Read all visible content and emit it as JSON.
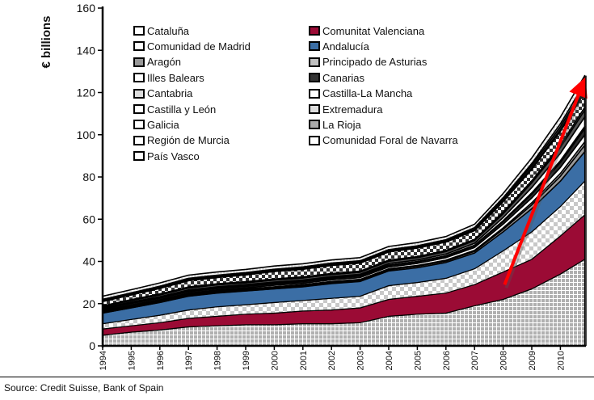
{
  "chart_data": {
    "type": "area",
    "stacked": true,
    "title": "",
    "xlabel": "",
    "ylabel": "€ billions",
    "ylim": [
      0,
      160
    ],
    "yticks": [
      "0",
      "20",
      "40",
      "60",
      "80",
      "100",
      "120",
      "140",
      "160"
    ],
    "xtick_labels": [
      "1994",
      "1995",
      "1996",
      "1997",
      "1998",
      "1999",
      "2000",
      "2001",
      "2002",
      "2003",
      "2004",
      "2005",
      "2006",
      "2007",
      "2008",
      "2009",
      "2010"
    ],
    "x": [
      1994,
      1995,
      1996,
      1997,
      1998,
      1999,
      2000,
      2001,
      2002,
      2003,
      2004,
      2005,
      2006,
      2007,
      2008,
      2009,
      2010,
      2010.85
    ],
    "series": [
      {
        "name": "Cataluña",
        "fill": "#b0b0b0",
        "pattern": "grid",
        "values": [
          5,
          6.5,
          7.5,
          9,
          9.5,
          10,
          10,
          10.5,
          10.5,
          11,
          14,
          15,
          15.5,
          19,
          22,
          27,
          34,
          41
        ]
      },
      {
        "name": "Comunitat Valenciana",
        "fill": "#9b0b35",
        "pattern": "solid",
        "values": [
          3,
          3,
          3.5,
          4,
          4.5,
          5,
          5.5,
          6,
          6.5,
          7,
          8,
          8.5,
          9.5,
          10,
          13,
          14,
          18,
          21
        ]
      },
      {
        "name": "Comunidad de Madrid",
        "fill": "#c8c8c8",
        "pattern": "checker",
        "values": [
          2.5,
          3,
          3.5,
          4,
          4.5,
          4.5,
          5,
          5,
          5.5,
          5.5,
          6.5,
          6.5,
          7,
          7.5,
          10,
          13,
          14,
          16
        ]
      },
      {
        "name": "Andalucía",
        "fill": "#3b6ea5",
        "pattern": "solid",
        "values": [
          5,
          5.5,
          6,
          6.5,
          6.5,
          6.5,
          6.5,
          6.5,
          7,
          7,
          7,
          7,
          7.5,
          7.5,
          9,
          11,
          12,
          14
        ]
      },
      {
        "name": "Aragón",
        "fill": "#999999",
        "pattern": "solid",
        "values": [
          0.5,
          0.5,
          0.5,
          0.5,
          0.5,
          0.5,
          0.6,
          0.6,
          0.6,
          0.6,
          0.6,
          0.7,
          0.7,
          0.8,
          1.2,
          1.8,
          2.4,
          3
        ]
      },
      {
        "name": "Principado de Asturias",
        "fill": "#d0d0d0",
        "pattern": "solid",
        "values": [
          0.4,
          0.4,
          0.4,
          0.4,
          0.4,
          0.4,
          0.4,
          0.4,
          0.4,
          0.4,
          0.4,
          0.4,
          0.4,
          0.5,
          0.7,
          1,
          1.3,
          1.6
        ]
      },
      {
        "name": "Illes Balears",
        "fill": "#ffffff",
        "pattern": "solid",
        "values": [
          0.4,
          0.5,
          0.5,
          0.6,
          0.6,
          0.6,
          0.7,
          0.7,
          0.8,
          0.9,
          0.9,
          1,
          1.2,
          1.3,
          1.8,
          2.3,
          2.8,
          3.3
        ]
      },
      {
        "name": "Canarias",
        "fill": "#2a2a2a",
        "pattern": "solid",
        "values": [
          0.6,
          0.7,
          0.7,
          0.7,
          0.7,
          0.7,
          0.7,
          0.7,
          0.7,
          0.7,
          0.7,
          0.7,
          0.7,
          0.8,
          1.2,
          1.8,
          2.4,
          3
        ]
      },
      {
        "name": "Cantabria",
        "fill": "#ffffff",
        "pattern": "solid",
        "values": [
          0.2,
          0.2,
          0.2,
          0.2,
          0.2,
          0.2,
          0.2,
          0.2,
          0.2,
          0.2,
          0.2,
          0.2,
          0.2,
          0.3,
          0.4,
          0.6,
          0.8,
          1
        ]
      },
      {
        "name": "Castilla-La Mancha",
        "fill": "#ffffff",
        "pattern": "solid",
        "values": [
          0.4,
          0.5,
          0.5,
          0.6,
          0.6,
          0.6,
          0.6,
          0.6,
          0.6,
          0.6,
          0.7,
          0.7,
          0.8,
          0.9,
          1.5,
          2.5,
          3.5,
          4.5
        ]
      },
      {
        "name": "Castilla y León",
        "fill": "#555555",
        "pattern": "solid",
        "values": [
          0.6,
          0.7,
          0.8,
          0.9,
          0.9,
          0.9,
          1,
          1,
          1,
          1,
          1.1,
          1.1,
          1.2,
          1.3,
          1.8,
          2.3,
          2.8,
          3.3
        ]
      },
      {
        "name": "Extremadura",
        "fill": "#e8e8e8",
        "pattern": "solid",
        "values": [
          0.4,
          0.4,
          0.5,
          0.5,
          0.5,
          0.5,
          0.5,
          0.5,
          0.5,
          0.5,
          0.5,
          0.5,
          0.5,
          0.5,
          0.7,
          0.9,
          1.1,
          1.3
        ]
      },
      {
        "name": "Galicia",
        "fill": "#444444",
        "pattern": "checker",
        "values": [
          2,
          2.2,
          2.6,
          3,
          3,
          3.2,
          3.5,
          3.6,
          3.8,
          3.8,
          3.9,
          4,
          4,
          4.2,
          5,
          5.5,
          6.5,
          7
        ]
      },
      {
        "name": "La Rioja",
        "fill": "#a0a0a0",
        "pattern": "solid",
        "values": [
          0.1,
          0.1,
          0.1,
          0.1,
          0.1,
          0.1,
          0.1,
          0.1,
          0.1,
          0.1,
          0.1,
          0.1,
          0.1,
          0.2,
          0.3,
          0.5,
          0.7,
          0.9
        ]
      },
      {
        "name": "Región de Murcia",
        "fill": "#333333",
        "pattern": "solid",
        "values": [
          0.4,
          0.4,
          0.4,
          0.4,
          0.4,
          0.4,
          0.4,
          0.4,
          0.4,
          0.4,
          0.4,
          0.4,
          0.4,
          0.5,
          0.8,
          1.2,
          1.6,
          2
        ]
      },
      {
        "name": "Comunidad Foral de Navarra",
        "fill": "#ffffff",
        "pattern": "solid",
        "values": [
          0.5,
          0.5,
          0.6,
          0.6,
          0.6,
          0.6,
          0.6,
          0.6,
          0.6,
          0.6,
          0.6,
          0.6,
          0.6,
          0.7,
          0.8,
          1,
          1.3,
          1.6
        ]
      },
      {
        "name": "País Vasco",
        "fill": "#dddddd",
        "pattern": "grid",
        "values": [
          1.5,
          1.5,
          1.5,
          1.5,
          1.5,
          1.5,
          1.5,
          1.5,
          1.5,
          1.5,
          1.5,
          1.5,
          1.5,
          1.6,
          2,
          2.6,
          3.2,
          3.5
        ]
      }
    ],
    "annotation": {
      "type": "arrow",
      "color": "#ff0000",
      "from": [
        2008.05,
        29
      ],
      "to": [
        2010.75,
        123
      ]
    },
    "legend_position": "top-left",
    "source": "Source: Credit Suisse, Bank of Spain"
  },
  "legend": {
    "left": [
      "Cataluña",
      "Comunidad de Madrid",
      "Aragón",
      "Illes Balears",
      "Cantabria",
      "Castilla y León",
      "Galicia",
      "Región de Murcia",
      "País Vasco"
    ],
    "right": [
      "Comunitat Valenciana",
      "Andalucía",
      "Principado de Asturias",
      "Canarias",
      "Castilla-La Mancha",
      "Extremadura",
      "La Rioja",
      "Comunidad Foral de Navarra"
    ]
  },
  "legend_swatches": {
    "Cataluña": {
      "bg": "#ffffff",
      "border": "#000000"
    },
    "Comunidad de Madrid": {
      "bg": "#ffffff",
      "border": "#000000"
    },
    "Aragón": {
      "bg": "#999999",
      "border": "#000000"
    },
    "Illes Balears": {
      "bg": "#ffffff",
      "border": "#000000"
    },
    "Cantabria": {
      "bg": "#dddddd",
      "border": "#000000"
    },
    "Castilla y León": {
      "bg": "#ffffff",
      "border": "#000000"
    },
    "Galicia": {
      "bg": "#ffffff",
      "border": "#000000"
    },
    "Región de Murcia": {
      "bg": "#ffffff",
      "border": "#000000"
    },
    "País Vasco": {
      "bg": "#ffffff",
      "border": "#000000"
    },
    "Comunitat Valenciana": {
      "bg": "#9b0b35",
      "border": "#000000"
    },
    "Andalucía": {
      "bg": "#3b6ea5",
      "border": "#000000"
    },
    "Principado de Asturias": {
      "bg": "#c0c0c0",
      "border": "#000000"
    },
    "Canarias": {
      "bg": "#333333",
      "border": "#000000"
    },
    "Castilla-La Mancha": {
      "bg": "#ffffff",
      "border": "#000000"
    },
    "Extremadura": {
      "bg": "#dddddd",
      "border": "#000000"
    },
    "La Rioja": {
      "bg": "#aaaaaa",
      "border": "#000000"
    },
    "Comunidad Foral de Navarra": {
      "bg": "#ffffff",
      "border": "#000000"
    }
  }
}
